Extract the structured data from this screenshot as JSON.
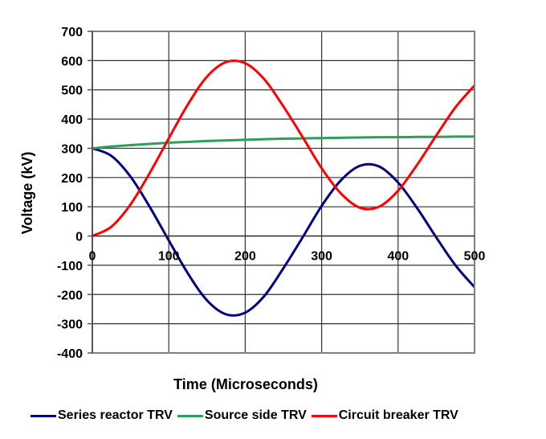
{
  "chart_data": {
    "type": "line",
    "title": "",
    "xlabel": "Time (Microseconds)",
    "ylabel": "Voltage (kV)",
    "xlim": [
      0,
      500
    ],
    "ylim": [
      -400,
      700
    ],
    "x_ticks": [
      0,
      100,
      200,
      300,
      400,
      500
    ],
    "y_ticks": [
      700,
      600,
      500,
      400,
      300,
      200,
      100,
      0,
      -100,
      -200,
      -300,
      -400
    ],
    "grid": true,
    "legend_position": "bottom",
    "x": [
      0,
      25,
      50,
      75,
      100,
      125,
      150,
      175,
      200,
      225,
      250,
      275,
      300,
      325,
      350,
      375,
      400,
      425,
      450,
      475,
      500
    ],
    "series": [
      {
        "name": "Series reactor TRV",
        "color": "#000080",
        "values": [
          300,
          274,
          203,
          100,
          -15,
          -128,
          -220,
          -268,
          -262,
          -205,
          -110,
          -5,
          103,
          190,
          240,
          238,
          183,
          95,
          -5,
          -100,
          -175
        ]
      },
      {
        "name": "Source side TRV",
        "color": "#2E9E5B",
        "values": [
          300,
          306,
          311,
          315,
          319,
          322,
          325,
          327,
          329,
          331,
          333,
          334,
          335,
          336,
          337,
          338,
          338,
          339,
          339,
          340,
          340
        ]
      },
      {
        "name": "Circuit breaker TRV",
        "color": "#FF0000",
        "values": [
          0,
          32,
          108,
          215,
          334,
          450,
          545,
          595,
          591,
          536,
          443,
          339,
          232,
          146,
          97,
          100,
          155,
          244,
          344,
          440,
          515
        ]
      }
    ]
  },
  "axes": {
    "x_title": "Time (Microseconds)",
    "y_title": "Voltage (kV)",
    "x_tick_labels": [
      "0",
      "100",
      "200",
      "300",
      "400",
      "500"
    ],
    "y_tick_labels": [
      "700",
      "600",
      "500",
      "400",
      "300",
      "200",
      "100",
      "0",
      "-100",
      "-200",
      "-300",
      "-400"
    ]
  },
  "legend": [
    {
      "label": "Series reactor TRV",
      "color": "#000080"
    },
    {
      "label": "Source side TRV",
      "color": "#2E9E5B"
    },
    {
      "label": "Circuit breaker TRV",
      "color": "#FF0000"
    }
  ]
}
